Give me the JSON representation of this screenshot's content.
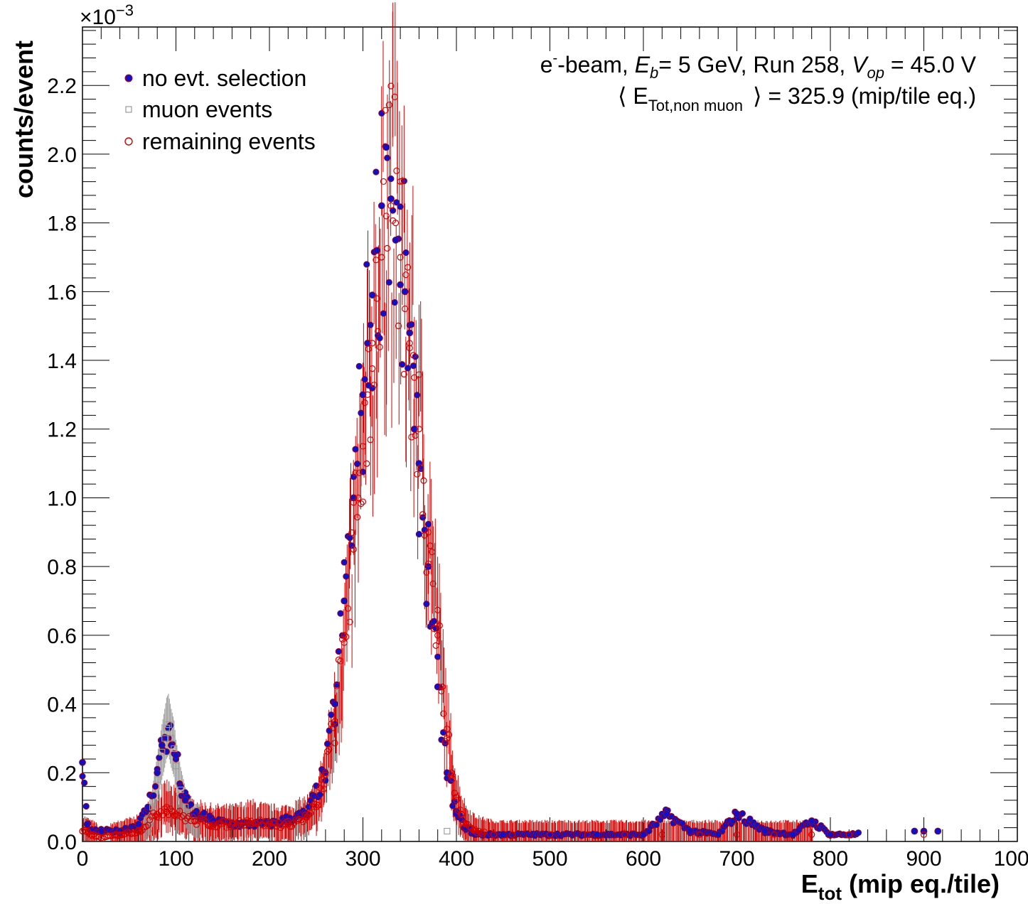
{
  "chart_data": {
    "type": "scatter",
    "title": "",
    "xlabel": "E",
    "xlabel_sub": "tot",
    "xlabel_rest": " (mip eq./tile)",
    "ylabel": "counts/event",
    "y_exponent_base": "×10",
    "y_exponent_power": "−3",
    "xlim": [
      0,
      1000
    ],
    "ylim": [
      0,
      2.37
    ],
    "x_ticks": [
      0,
      100,
      200,
      300,
      400,
      500,
      600,
      700,
      800,
      900,
      1000
    ],
    "x_tick_labels": [
      "0",
      "100",
      "200",
      "300",
      "400",
      "500",
      "600",
      "700",
      "800",
      "900",
      "1000"
    ],
    "y_ticks": [
      0.0,
      0.2,
      0.4,
      0.6,
      0.8,
      1.0,
      1.2,
      1.4,
      1.6,
      1.8,
      2.0,
      2.2
    ],
    "y_tick_labels": [
      "0.0",
      "0.2",
      "0.4",
      "0.6",
      "0.8",
      "1.0",
      "1.2",
      "1.4",
      "1.6",
      "1.8",
      "2.0",
      "2.2"
    ],
    "grid": false,
    "legend_position": "top-left",
    "colors": {
      "no_selection": "#1010c8",
      "muon": "#9a9a9a",
      "remaining": "#d40000"
    },
    "annotation_line1": {
      "p1": "e",
      "p1_sup": "-",
      "p2": "-beam, ",
      "p3": "E",
      "p3_sub": "b",
      "p4": "= 5 GeV, Run 258, ",
      "p5": "V",
      "p5_sub": "op",
      "p6": " = 45.0 V"
    },
    "annotation_line2": {
      "open": "⟨ E",
      "sub": "Tot,non muon",
      "close": "⟩ = 325.9 (mip/tile eq.)"
    },
    "series": [
      {
        "name": "no evt. selection",
        "marker": "filled-circle",
        "x": [
          0,
          5,
          10,
          20,
          40,
          60,
          70,
          80,
          85,
          90,
          92,
          95,
          100,
          105,
          110,
          120,
          140,
          160,
          200,
          240,
          260,
          270,
          280,
          290,
          300,
          305,
          310,
          315,
          320,
          325,
          330,
          335,
          340,
          345,
          350,
          355,
          360,
          370,
          380,
          390,
          400,
          410,
          420,
          450,
          500,
          550,
          600,
          625,
          650,
          680,
          700,
          730,
          760,
          780,
          800,
          820,
          890,
          900,
          915
        ],
        "y": [
          0.23,
          0.05,
          0.03,
          0.03,
          0.03,
          0.05,
          0.1,
          0.2,
          0.28,
          0.3,
          0.33,
          0.28,
          0.25,
          0.16,
          0.12,
          0.08,
          0.06,
          0.05,
          0.05,
          0.08,
          0.2,
          0.4,
          0.7,
          1.0,
          1.3,
          1.45,
          1.59,
          1.72,
          1.85,
          2.02,
          1.87,
          1.75,
          1.62,
          1.6,
          1.48,
          1.2,
          1.1,
          0.8,
          0.45,
          0.2,
          0.08,
          0.04,
          0.02,
          0.02,
          0.02,
          0.02,
          0.02,
          0.08,
          0.03,
          0.02,
          0.08,
          0.03,
          0.02,
          0.06,
          0.02,
          0.02,
          0.03,
          0.03,
          0.03
        ]
      },
      {
        "name": "muon events",
        "marker": "open-square",
        "x": [
          70,
          75,
          80,
          85,
          88,
          90,
          92,
          95,
          98,
          100,
          105,
          110,
          120,
          390
        ],
        "y": [
          0.05,
          0.1,
          0.18,
          0.26,
          0.3,
          0.33,
          0.34,
          0.3,
          0.27,
          0.22,
          0.15,
          0.1,
          0.06,
          0.03
        ]
      },
      {
        "name": "remaining events",
        "marker": "open-circle",
        "x": [
          0,
          10,
          20,
          40,
          60,
          80,
          90,
          100,
          120,
          140,
          160,
          180,
          200,
          220,
          240,
          250,
          260,
          270,
          280,
          290,
          295,
          300,
          305,
          310,
          315,
          320,
          325,
          330,
          335,
          340,
          345,
          350,
          355,
          360,
          365,
          370,
          375,
          380,
          385,
          390,
          395,
          400,
          405,
          410,
          420,
          440,
          460,
          500,
          540,
          580,
          620,
          660,
          700,
          740,
          780,
          820,
          900
        ],
        "y": [
          0.03,
          0.02,
          0.01,
          0.02,
          0.03,
          0.08,
          0.1,
          0.08,
          0.06,
          0.05,
          0.05,
          0.06,
          0.05,
          0.05,
          0.07,
          0.1,
          0.2,
          0.35,
          0.6,
          0.85,
          1.0,
          1.15,
          1.3,
          1.45,
          1.58,
          1.7,
          1.82,
          1.85,
          1.8,
          1.7,
          1.55,
          1.45,
          1.35,
          1.2,
          1.05,
          0.9,
          0.75,
          0.6,
          0.45,
          0.3,
          0.2,
          0.12,
          0.08,
          0.05,
          0.03,
          0.02,
          0.02,
          0.02,
          0.02,
          0.02,
          0.02,
          0.02,
          0.02,
          0.02,
          0.02,
          0.02,
          0.02
        ]
      }
    ]
  }
}
